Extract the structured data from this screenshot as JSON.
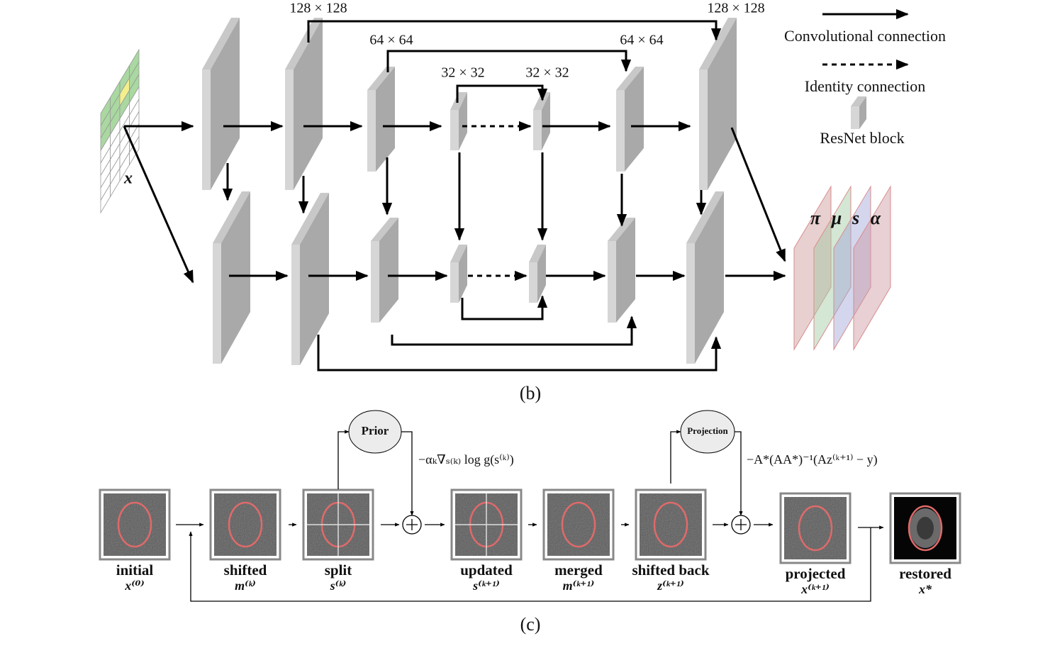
{
  "panel_b": {
    "caption": "(b)",
    "size_labels": [
      "128 × 128",
      "128 × 128",
      "64 × 64",
      "64 × 64",
      "32 × 32",
      "32 × 32"
    ],
    "input_label": "x",
    "output_labels": [
      "π",
      "μ",
      "s",
      "α"
    ],
    "legend": {
      "convolutional": "Convolutional connection",
      "identity": "Identity connection",
      "resnet": "ResNet block"
    }
  },
  "panel_c": {
    "caption": "(c)",
    "prior": "Prior",
    "projection": "Projection",
    "prior_update": "−αₖ∇ₛ₍ₖ₎ log g(s⁽ᵏ⁾)",
    "projection_update": "−A*(AA*)⁻¹(Az⁽ᵏ⁺¹⁾ − y)",
    "stages": [
      {
        "name": "initial",
        "symbol": "x⁽⁰⁾"
      },
      {
        "name": "shifted",
        "symbol": "m⁽ᵏ⁾"
      },
      {
        "name": "split",
        "symbol": "s⁽ᵏ⁾"
      },
      {
        "name": "updated",
        "symbol": "s⁽ᵏ⁺¹⁾"
      },
      {
        "name": "merged",
        "symbol": "m⁽ᵏ⁺¹⁾"
      },
      {
        "name": "shifted back",
        "symbol": "z⁽ᵏ⁺¹⁾"
      },
      {
        "name": "projected",
        "symbol": "x⁽ᵏ⁺¹⁾"
      },
      {
        "name": "restored",
        "symbol": "x*"
      }
    ]
  }
}
